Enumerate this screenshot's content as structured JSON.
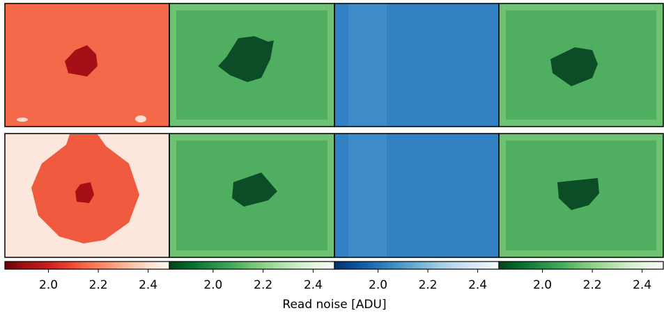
{
  "chart_data": {
    "type": "heatmap",
    "colorbar_label": "Read noise [ADU]",
    "colorbars": [
      {
        "colormap": "Reds_r",
        "xlim": [
          1.825,
          2.485
        ],
        "xticks": [
          {
            "value": 2,
            "label": "2.0"
          },
          {
            "value": 2.2,
            "label": "2.2"
          },
          {
            "value": 2.4,
            "label": "2.4"
          }
        ]
      },
      {
        "colormap": "Greens_r",
        "xlim": [
          1.825,
          2.485
        ],
        "xticks": [
          {
            "value": 2,
            "label": "2.0"
          },
          {
            "value": 2.2,
            "label": "2.2"
          },
          {
            "value": 2.4,
            "label": "2.4"
          }
        ]
      },
      {
        "colormap": "Blues_r",
        "xlim": [
          1.825,
          2.485
        ],
        "xticks": [
          {
            "value": 2,
            "label": "2.0"
          },
          {
            "value": 2.2,
            "label": "2.2"
          },
          {
            "value": 2.4,
            "label": "2.4"
          }
        ]
      },
      {
        "colormap": "Greens_r",
        "xlim": [
          1.825,
          2.485
        ],
        "xticks": [
          {
            "value": 2,
            "label": "2.0"
          },
          {
            "value": 2.2,
            "label": "2.2"
          },
          {
            "value": 2.4,
            "label": "2.4"
          }
        ]
      }
    ]
  }
}
